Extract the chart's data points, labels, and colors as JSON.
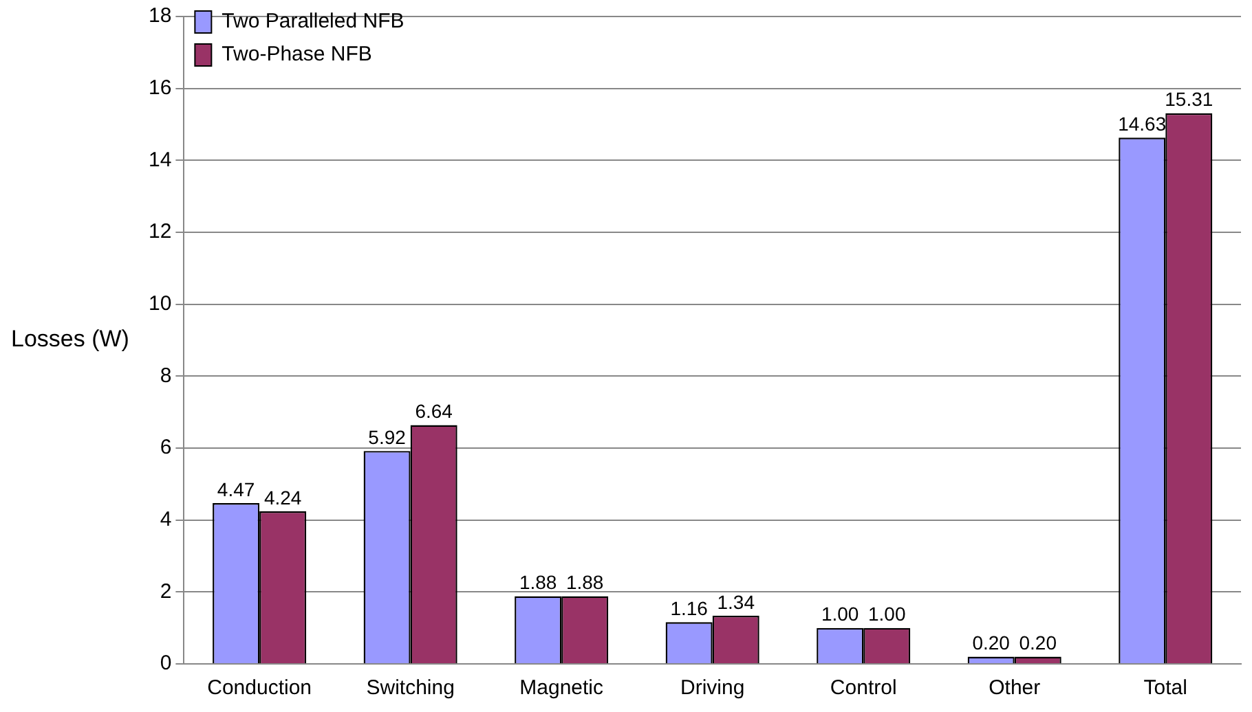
{
  "chart_data": {
    "type": "bar",
    "ylabel": "Losses (W)",
    "categories": [
      "Conduction",
      "Switching",
      "Magnetic",
      "Driving",
      "Control",
      "Other",
      "Total"
    ],
    "series": [
      {
        "name": "Two Paralleled NFB",
        "color": "#9999ff",
        "values": [
          4.47,
          5.92,
          1.88,
          1.16,
          1.0,
          0.2,
          14.63
        ],
        "value_labels": [
          "4.47",
          "5.92",
          "1.88",
          "1.16",
          "1.00",
          "0.20",
          "14.63"
        ]
      },
      {
        "name": "Two-Phase NFB",
        "color": "#993366",
        "values": [
          4.24,
          6.64,
          1.88,
          1.34,
          1.0,
          0.2,
          15.31
        ],
        "value_labels": [
          "4.24",
          "6.64",
          "1.88",
          "1.34",
          "1.00",
          "0.20",
          "15.31"
        ]
      }
    ],
    "ylim": [
      0,
      18
    ],
    "yticks": [
      0,
      2,
      4,
      6,
      8,
      10,
      12,
      14,
      16,
      18
    ],
    "grid": "y",
    "legend": "top left"
  }
}
